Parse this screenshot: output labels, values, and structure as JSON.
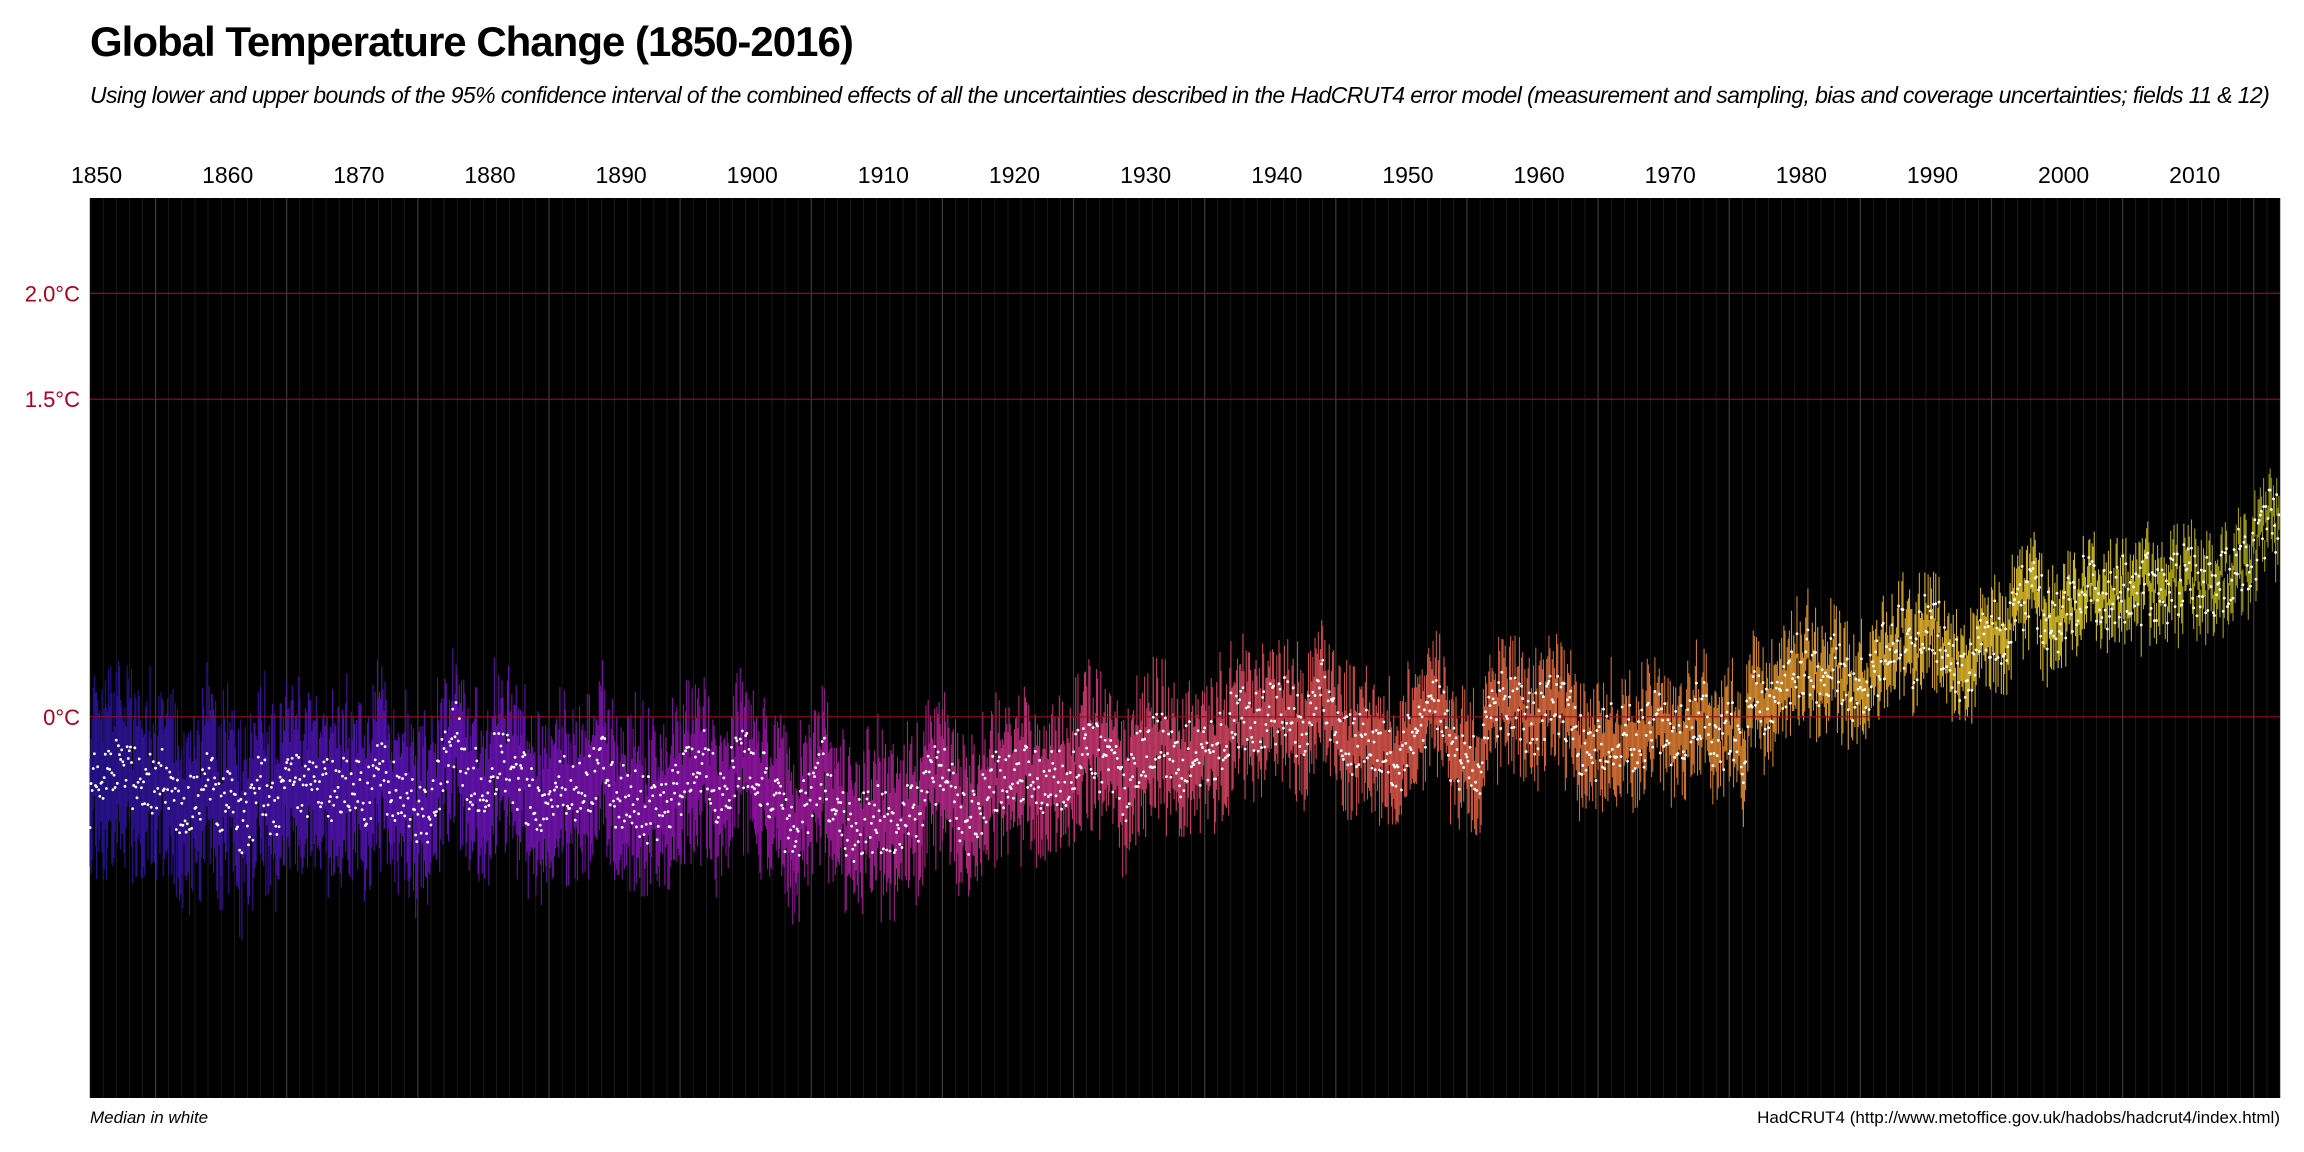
{
  "header": {
    "title": "Global Temperature Change (1850-2016)",
    "subtitle": "Using lower and upper bounds of the 95% confidence interval of the combined effects of all the uncertainties described in the HadCRUT4 error model (measurement and sampling, bias and coverage uncertainties; fields 11 & 12)"
  },
  "footer": {
    "left_note": "Median in white",
    "source": "HadCRUT4 (http://www.metoffice.gov.uk/hadobs/hadcrut4/index.html)"
  },
  "colors": {
    "background": "#000000",
    "reference_lines": "#9b0c20",
    "y_tick_labels": "#b0001e",
    "median": "#ffffff",
    "grid": "#2a2a2a"
  },
  "chart_data": {
    "type": "line",
    "title": "Global Temperature Change (1850-2016)",
    "xlabel": "",
    "ylabel": "",
    "xlim": [
      1850,
      2017
    ],
    "ylim": [
      -1.8,
      2.45
    ],
    "x_ticks": [
      1850,
      1860,
      1870,
      1880,
      1890,
      1900,
      1910,
      1920,
      1930,
      1940,
      1950,
      1960,
      1970,
      1980,
      1990,
      2000,
      2010
    ],
    "y_ticks": [
      {
        "value": 0,
        "label": "0°C"
      },
      {
        "value": 1.5,
        "label": "1.5°C"
      },
      {
        "value": 2.0,
        "label": "2.0°C"
      }
    ],
    "grid": "vertical gridlines at each year (x), reference lines at y ticks",
    "color_scale": "plasma-like gradient over time: dark blue (1850) → purple → magenta → coral → orange → yellow → olive (2016)",
    "series": [
      {
        "name": "Median in white",
        "style": "white points (monthly median); colored vertical bars show 95% confidence interval",
        "annual_median_anomaly": {
          "x": [
            1850,
            1851,
            1852,
            1853,
            1854,
            1855,
            1856,
            1857,
            1858,
            1859,
            1860,
            1861,
            1862,
            1863,
            1864,
            1865,
            1866,
            1867,
            1868,
            1869,
            1870,
            1871,
            1872,
            1873,
            1874,
            1875,
            1876,
            1877,
            1878,
            1879,
            1880,
            1881,
            1882,
            1883,
            1884,
            1885,
            1886,
            1887,
            1888,
            1889,
            1890,
            1891,
            1892,
            1893,
            1894,
            1895,
            1896,
            1897,
            1898,
            1899,
            1900,
            1901,
            1902,
            1903,
            1904,
            1905,
            1906,
            1907,
            1908,
            1909,
            1910,
            1911,
            1912,
            1913,
            1914,
            1915,
            1916,
            1917,
            1918,
            1919,
            1920,
            1921,
            1922,
            1923,
            1924,
            1925,
            1926,
            1927,
            1928,
            1929,
            1930,
            1931,
            1932,
            1933,
            1934,
            1935,
            1936,
            1937,
            1938,
            1939,
            1940,
            1941,
            1942,
            1943,
            1944,
            1945,
            1946,
            1947,
            1948,
            1949,
            1950,
            1951,
            1952,
            1953,
            1954,
            1955,
            1956,
            1957,
            1958,
            1959,
            1960,
            1961,
            1962,
            1963,
            1964,
            1965,
            1966,
            1967,
            1968,
            1969,
            1970,
            1971,
            1972,
            1973,
            1974,
            1975,
            1976,
            1977,
            1978,
            1979,
            1980,
            1981,
            1982,
            1983,
            1984,
            1985,
            1986,
            1987,
            1988,
            1989,
            1990,
            1991,
            1992,
            1993,
            1994,
            1995,
            1996,
            1997,
            1998,
            1999,
            2000,
            2001,
            2002,
            2003,
            2004,
            2005,
            2006,
            2007,
            2008,
            2009,
            2010,
            2011,
            2012,
            2013,
            2014,
            2015,
            2016
          ],
          "y": [
            -0.37,
            -0.23,
            -0.23,
            -0.27,
            -0.29,
            -0.3,
            -0.32,
            -0.47,
            -0.39,
            -0.28,
            -0.39,
            -0.43,
            -0.54,
            -0.3,
            -0.48,
            -0.33,
            -0.34,
            -0.36,
            -0.34,
            -0.33,
            -0.32,
            -0.36,
            -0.27,
            -0.32,
            -0.4,
            -0.46,
            -0.45,
            -0.2,
            -0.07,
            -0.31,
            -0.3,
            -0.21,
            -0.25,
            -0.32,
            -0.42,
            -0.39,
            -0.33,
            -0.36,
            -0.33,
            -0.2,
            -0.4,
            -0.38,
            -0.43,
            -0.45,
            -0.41,
            -0.37,
            -0.19,
            -0.2,
            -0.41,
            -0.27,
            -0.19,
            -0.27,
            -0.39,
            -0.48,
            -0.52,
            -0.35,
            -0.26,
            -0.49,
            -0.53,
            -0.51,
            -0.47,
            -0.51,
            -0.48,
            -0.47,
            -0.29,
            -0.23,
            -0.42,
            -0.55,
            -0.43,
            -0.31,
            -0.29,
            -0.24,
            -0.32,
            -0.3,
            -0.3,
            -0.23,
            -0.12,
            -0.21,
            -0.22,
            -0.36,
            -0.16,
            -0.1,
            -0.13,
            -0.27,
            -0.13,
            -0.19,
            -0.14,
            -0.02,
            -0.01,
            -0.03,
            0.01,
            0.06,
            -0.03,
            -0.03,
            0.12,
            0.0,
            -0.13,
            -0.08,
            -0.14,
            -0.15,
            -0.23,
            -0.05,
            0.0,
            0.05,
            -0.21,
            -0.23,
            -0.26,
            0.05,
            0.06,
            0.01,
            -0.04,
            0.05,
            0.03,
            0.01,
            -0.22,
            -0.14,
            -0.07,
            -0.08,
            -0.14,
            -0.02,
            -0.06,
            -0.13,
            -0.04,
            0.05,
            -0.16,
            -0.05,
            -0.19,
            0.13,
            0.03,
            0.14,
            0.23,
            0.27,
            0.13,
            0.33,
            0.12,
            0.11,
            0.18,
            0.33,
            0.4,
            0.27,
            0.45,
            0.4,
            0.22,
            0.23,
            0.31,
            0.45,
            0.33,
            0.52,
            0.63,
            0.49,
            0.45,
            0.54,
            0.6,
            0.61,
            0.54,
            0.61,
            0.56,
            0.62,
            0.55,
            0.63,
            0.68,
            0.58,
            0.62,
            0.67,
            0.74,
            0.76,
            0.93
          ]
        },
        "ci_half_width_start": 0.3,
        "ci_half_width_end": 0.1
      }
    ]
  }
}
